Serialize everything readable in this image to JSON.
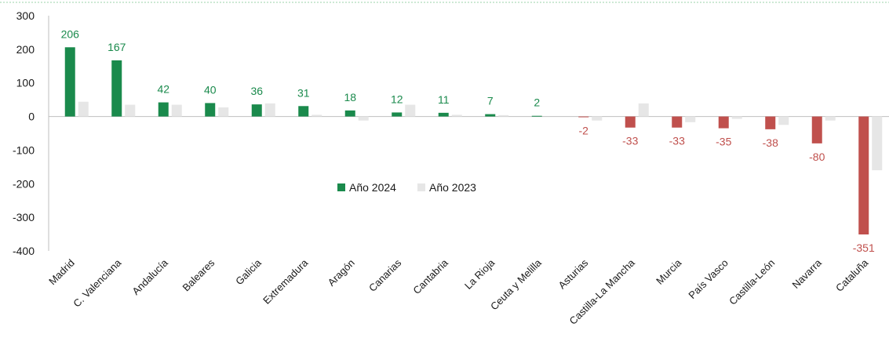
{
  "chart_data": {
    "type": "bar",
    "categories": [
      "Madrid",
      "C. Valenciana",
      "Andalucía",
      "Baleares",
      "Galicia",
      "Extremadura",
      "Aragón",
      "Canarias",
      "Cantabria",
      "La Rioja",
      "Ceuta y Melilla",
      "Asturias",
      "Castilla-La Mancha",
      "Murcia",
      "País Vasco",
      "Castilla-León",
      "Navarra",
      "Cataluña"
    ],
    "series": [
      {
        "name": "Año 2024",
        "values": [
          206,
          167,
          42,
          40,
          36,
          31,
          18,
          12,
          11,
          7,
          2,
          -2,
          -33,
          -33,
          -35,
          -38,
          -80,
          -351
        ],
        "data_labels": [
          "206",
          "167",
          "42",
          "40",
          "36",
          "31",
          "18",
          "12",
          "11",
          "7",
          "2",
          "-2",
          "-33",
          "-33",
          "-35",
          "-38",
          "-80",
          "-351"
        ]
      },
      {
        "name": "Año 2023",
        "values": [
          44,
          35,
          35,
          27,
          39,
          5,
          -12,
          35,
          5,
          4,
          0,
          -12,
          39,
          -17,
          -7,
          -25,
          -12,
          -160
        ]
      }
    ],
    "ylim": [
      -400,
      300
    ],
    "yticks": [
      300,
      200,
      100,
      0,
      -100,
      -200,
      -300,
      -400
    ],
    "ytick_labels": [
      "300",
      "200",
      "100",
      "0",
      "-100",
      "-200",
      "-300",
      "-400"
    ],
    "xlabel": "",
    "ylabel": "",
    "title": "",
    "legend_position": "center",
    "grid": false,
    "colors": {
      "positive": "#1a8a4c",
      "negative": "#c0504d",
      "series_2023": "#e6e6e6",
      "axis": "#bfbfbf",
      "top_border": "#9bd3a9",
      "label_positive": "#1a8a4c",
      "label_negative": "#c0504d"
    }
  }
}
